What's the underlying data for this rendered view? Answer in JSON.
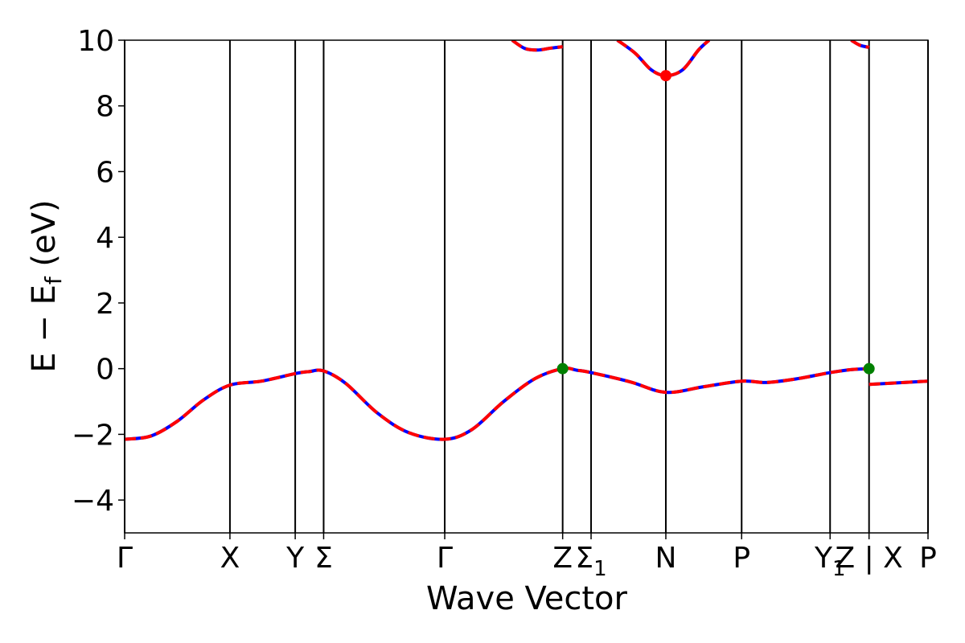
{
  "chart_data": {
    "type": "line",
    "title": "",
    "xlabel": "Wave Vector",
    "ylabel": "E − E_f (eV)",
    "ylabel_parts": {
      "main": "E − E",
      "sub": "f",
      "unit": " (eV)"
    },
    "ylim": [
      -5,
      10
    ],
    "xlim": [
      0,
      7.63
    ],
    "grid": false,
    "yticks": [
      -4,
      -2,
      0,
      2,
      4,
      6,
      8,
      10
    ],
    "ytick_labels": [
      "−4",
      "−2",
      "0",
      "2",
      "4",
      "6",
      "8",
      "10"
    ],
    "kpoints": [
      {
        "x": 0.0,
        "label": "Γ",
        "sub": ""
      },
      {
        "x": 1.0,
        "label": "X",
        "sub": ""
      },
      {
        "x": 1.62,
        "label": "Y",
        "sub": ""
      },
      {
        "x": 1.89,
        "label": "Σ",
        "sub": ""
      },
      {
        "x": 3.04,
        "label": "Γ",
        "sub": ""
      },
      {
        "x": 4.16,
        "label": "Z",
        "sub": ""
      },
      {
        "x": 4.43,
        "label": "Σ",
        "sub": "1"
      },
      {
        "x": 5.14,
        "label": "N",
        "sub": ""
      },
      {
        "x": 5.86,
        "label": "P",
        "sub": ""
      },
      {
        "x": 6.7,
        "label": "Y",
        "sub": "1"
      },
      {
        "x": 7.07,
        "label": "Z | X",
        "sub": ""
      },
      {
        "x": 7.63,
        "label": "P",
        "sub": ""
      }
    ],
    "series": [
      {
        "color": "#0000ff",
        "overlay_color": "#ff0000",
        "segments": [
          {
            "x": [
              0.0,
              0.25,
              0.5,
              0.75,
              1.0,
              1.3,
              1.62,
              1.75,
              1.89,
              2.1,
              2.4,
              2.7,
              3.04,
              3.3,
              3.6,
              3.9,
              4.16,
              4.3,
              4.43,
              4.8,
              5.14,
              5.5,
              5.86,
              6.1,
              6.4,
              6.7,
              6.9,
              7.07
            ],
            "y": [
              -2.15,
              -2.05,
              -1.6,
              -0.95,
              -0.5,
              -0.38,
              -0.15,
              -0.09,
              -0.07,
              -0.45,
              -1.35,
              -1.95,
              -2.15,
              -1.85,
              -1.0,
              -0.3,
              0.0,
              -0.05,
              -0.12,
              -0.4,
              -0.72,
              -0.55,
              -0.38,
              -0.42,
              -0.3,
              -0.12,
              -0.03,
              0.0
            ]
          },
          {
            "x": [
              7.07,
              7.35,
              7.63
            ],
            "y": [
              -0.48,
              -0.43,
              -0.38
            ]
          },
          {
            "x": [
              3.68,
              3.8,
              3.92,
              4.05,
              4.16
            ],
            "y": [
              10.0,
              9.75,
              9.7,
              9.76,
              9.8
            ]
          },
          {
            "x": [
              4.68,
              4.85,
              5.0,
              5.14,
              5.3,
              5.45,
              5.55
            ],
            "y": [
              10.0,
              9.6,
              9.1,
              8.92,
              9.1,
              9.7,
              10.0
            ]
          },
          {
            "x": [
              6.9,
              6.98,
              7.07
            ],
            "y": [
              10.0,
              9.85,
              9.78
            ]
          }
        ]
      }
    ],
    "markers": [
      {
        "x": 4.16,
        "y": 0.0,
        "color": "#008000"
      },
      {
        "x": 7.07,
        "y": 0.0,
        "color": "#008000"
      },
      {
        "x": 5.14,
        "y": 8.92,
        "color": "#ff0000"
      }
    ]
  }
}
